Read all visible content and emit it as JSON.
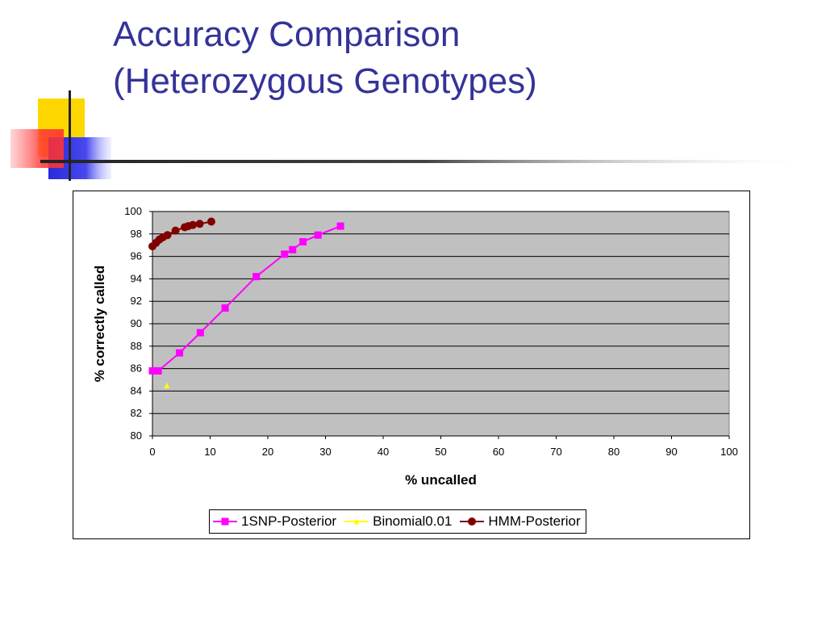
{
  "slide": {
    "title_line1": "Accuracy Comparison",
    "title_line2": "(Heterozygous Genotypes)",
    "title_color": "#333399"
  },
  "chart_data": {
    "type": "line",
    "xlabel": "% uncalled",
    "ylabel": "% correctly called",
    "xlim": [
      0,
      100
    ],
    "ylim": [
      80,
      100
    ],
    "x_ticks": [
      "0",
      "10",
      "20",
      "30",
      "40",
      "50",
      "60",
      "70",
      "80",
      "90",
      "100"
    ],
    "y_ticks": [
      "80",
      "82",
      "84",
      "86",
      "88",
      "90",
      "92",
      "94",
      "96",
      "98",
      "100"
    ],
    "plot_background": "#C0C0C0",
    "grid": "horizontal",
    "legend_position": "bottom",
    "series": [
      {
        "name": "1SNP-Posterior",
        "color": "#FF00FF",
        "marker": "square",
        "points": [
          [
            0,
            85.8
          ],
          [
            1,
            85.8
          ],
          [
            4.7,
            87.4
          ],
          [
            8.3,
            89.2
          ],
          [
            12.6,
            91.4
          ],
          [
            18,
            94.2
          ],
          [
            22.9,
            96.2
          ],
          [
            24.3,
            96.6
          ],
          [
            26.1,
            97.3
          ],
          [
            28.7,
            97.9
          ],
          [
            32.6,
            98.7
          ]
        ]
      },
      {
        "name": "Binomial0.01",
        "color": "#FFFF00",
        "marker": "triangle",
        "points": [
          [
            2.5,
            84.5
          ]
        ]
      },
      {
        "name": "HMM-Posterior",
        "color": "#800000",
        "marker": "circle",
        "points": [
          [
            0,
            96.9
          ],
          [
            0.6,
            97.2
          ],
          [
            1.2,
            97.5
          ],
          [
            1.8,
            97.7
          ],
          [
            2.6,
            97.9
          ],
          [
            4,
            98.3
          ],
          [
            5.6,
            98.6
          ],
          [
            6.2,
            98.7
          ],
          [
            7,
            98.8
          ],
          [
            8.2,
            98.9
          ],
          [
            10.2,
            99.1
          ]
        ]
      }
    ]
  }
}
